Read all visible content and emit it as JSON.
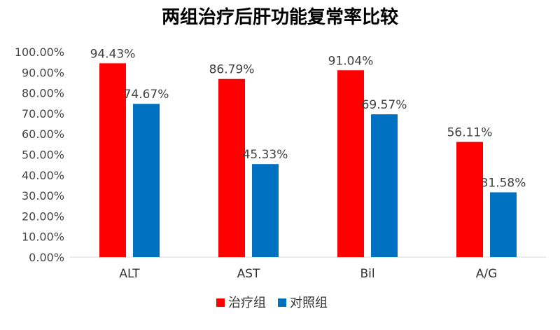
{
  "chart_data": {
    "type": "bar",
    "title": "两组治疗后肝功能复常率比较",
    "categories": [
      "ALT",
      "AST",
      "Bil",
      "A/G"
    ],
    "series": [
      {
        "name": "治疗组",
        "color": "#ff0000",
        "values": [
          94.43,
          86.79,
          91.04,
          56.11
        ],
        "labels": [
          "94.43%",
          "86.79%",
          "91.04%",
          "56.11%"
        ]
      },
      {
        "name": "对照组",
        "color": "#0070c0",
        "values": [
          74.67,
          45.33,
          69.57,
          31.58
        ],
        "labels": [
          "74.67%",
          "45.33%",
          "69.57%",
          "31.58%"
        ]
      }
    ],
    "ylim": [
      0,
      100
    ],
    "yticks": [
      "0.00%",
      "10.00%",
      "20.00%",
      "30.00%",
      "40.00%",
      "50.00%",
      "60.00%",
      "70.00%",
      "80.00%",
      "90.00%",
      "100.00%"
    ],
    "xlabel": "",
    "ylabel": "",
    "grid": false,
    "legend_position": "bottom"
  }
}
